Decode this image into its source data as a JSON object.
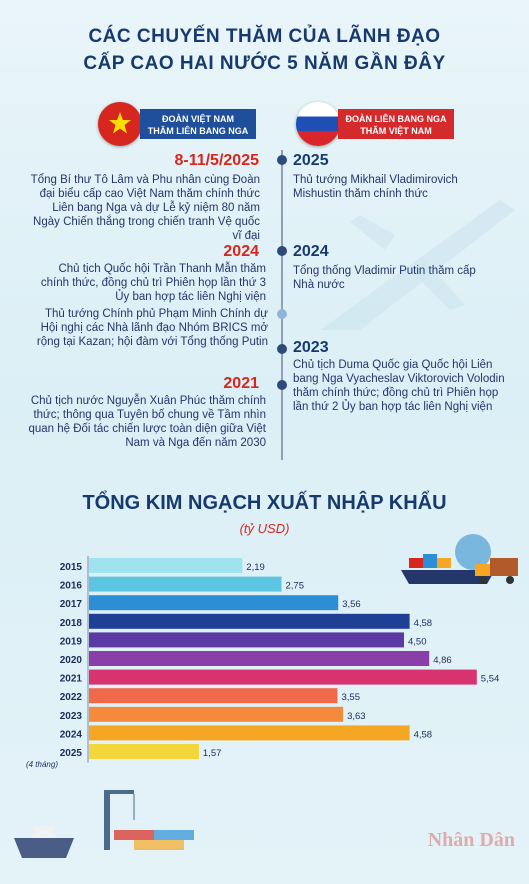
{
  "header": {
    "line1": "CÁC CHUYẾN THĂM CỦA LÃNH ĐẠO",
    "line2": "CẤP CAO HAI NƯỚC 5 NĂM GẦN ĐÂY"
  },
  "banners": {
    "vn_line1": "ĐOÀN VIỆT NAM",
    "vn_line2": "THĂM LIÊN BANG NGA",
    "ru_line1": "ĐOÀN LIÊN BANG NGA",
    "ru_line2": "THĂM VIỆT NAM"
  },
  "vn_visits": [
    {
      "year": "8-11/5/2025",
      "text": "Tổng Bí thư Tô Lâm và Phu nhân cùng Đoàn đại biểu cấp cao Việt Nam thăm chính thức Liên bang Nga và dự Lễ kỷ niệm 80 năm Ngày Chiến thắng trong chiến tranh Vệ quốc vĩ đại"
    },
    {
      "year": "2024",
      "text": "Chủ tịch Quốc hội Trần Thanh Mẫn thăm chính thức, đồng chủ trì Phiên họp lần thứ 3 Ủy ban hợp tác liên Nghị viện"
    },
    {
      "year": "",
      "text": "Thủ tướng Chính phủ Phạm Minh Chính dự Hội nghị các Nhà lãnh đạo Nhóm BRICS mở rộng tại Kazan; hội đàm với Tổng thống Putin"
    },
    {
      "year": "2021",
      "text": "Chủ tịch nước Nguyễn Xuân Phúc thăm chính thức; thông qua Tuyên bố chung về Tầm nhìn quan hệ Đối tác chiến lược toàn diện giữa Việt Nam và Nga đến năm 2030"
    }
  ],
  "ru_visits": [
    {
      "year": "2025",
      "text": "Thủ tướng Mikhail Vladimirovich Mishustin thăm chính thức"
    },
    {
      "year": "2024",
      "text": "Tổng thống Vladimir Putin thăm cấp Nhà nước"
    },
    {
      "year": "2023",
      "text": "Chủ tịch Duma Quốc gia Quốc hội Liên bang Nga Vyacheslav Viktorovich Volodin thăm chính thức; đồng chủ trì Phiên họp lần thứ 2 Ủy ban hợp tác liên Nghị viện"
    }
  ],
  "trade": {
    "title": "TỔNG KIM NGẠCH XUẤT NHẬP KHẨU",
    "unit": "(tỷ USD)"
  },
  "chart_data": {
    "type": "bar",
    "orientation": "horizontal",
    "title": "TỔNG KIM NGẠCH XUẤT NHẬP KHẨU",
    "unit": "(tỷ USD)",
    "categories": [
      "2015",
      "2016",
      "2017",
      "2018",
      "2019",
      "2020",
      "2021",
      "2022",
      "2023",
      "2024",
      "2025"
    ],
    "category_notes": {
      "2025": "(4 tháng)"
    },
    "values": [
      2.19,
      2.75,
      3.56,
      4.58,
      4.5,
      4.86,
      5.54,
      3.55,
      3.63,
      4.58,
      1.57
    ],
    "value_labels": [
      "2,19",
      "2,75",
      "3,56",
      "4,58",
      "4,50",
      "4,86",
      "5,54",
      "3,55",
      "3,63",
      "4,58",
      "1,57"
    ],
    "colors": [
      "#9fe3ef",
      "#5cc6e2",
      "#2c8fd6",
      "#1f3f95",
      "#5b3aa4",
      "#8a3fa8",
      "#d6336f",
      "#f06a4a",
      "#f58a3c",
      "#f5a623",
      "#f2d63a"
    ],
    "xlim": [
      0,
      6
    ]
  },
  "brand": "Nhân Dân"
}
